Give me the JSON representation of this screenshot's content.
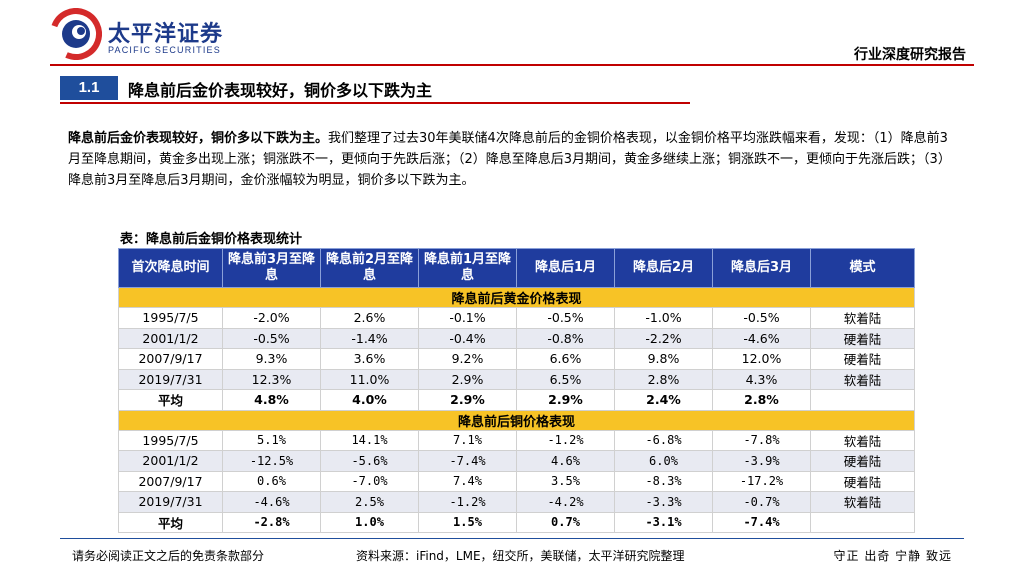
{
  "header": {
    "brand_cn": "太平洋证券",
    "brand_en": "PACIFIC SECURITIES",
    "report_type": "行业深度研究报告",
    "accent_red": "#c00000",
    "accent_blue": "#1f4e9c"
  },
  "section": {
    "number": "1.1",
    "title": "降息前后金价表现较好，铜价多以下跌为主"
  },
  "paragraph": {
    "lead": "降息前后金价表现较好，铜价多以下跌为主。",
    "body": "我们整理了过去30年美联储4次降息前后的金铜价格表现，以金铜价格平均涨跌幅来看，发现：（1）降息前3月至降息期间，黄金多出现上涨；铜涨跌不一，更倾向于先跌后涨；（2）降息至降息后3月期间，黄金多继续上涨；铜涨跌不一，更倾向于先涨后跌；（3）降息前3月至降息后3月期间，金价涨幅较为明显，铜价多以下跌为主。"
  },
  "table": {
    "title": "表：降息前后金铜价格表现统计",
    "header_color": "#1f3c9e",
    "band_color": "#f7c326",
    "columns": [
      "首次降息时间",
      "降息前3月至降息",
      "降息前2月至降息",
      "降息前1月至降息",
      "降息后1月",
      "降息后2月",
      "降息后3月",
      "模式"
    ],
    "gold_band": "降息前后黄金价格表现",
    "gold_rows": [
      [
        "1995/7/5",
        "-2.0%",
        "2.6%",
        "-0.1%",
        "-0.5%",
        "-1.0%",
        "-0.5%",
        "软着陆"
      ],
      [
        "2001/1/2",
        "-0.5%",
        "-1.4%",
        "-0.4%",
        "-0.8%",
        "-2.2%",
        "-4.6%",
        "硬着陆"
      ],
      [
        "2007/9/17",
        "9.3%",
        "3.6%",
        "9.2%",
        "6.6%",
        "9.8%",
        "12.0%",
        "硬着陆"
      ],
      [
        "2019/7/31",
        "12.3%",
        "11.0%",
        "2.9%",
        "6.5%",
        "2.8%",
        "4.3%",
        "软着陆"
      ]
    ],
    "gold_avg": [
      "平均",
      "4.8%",
      "4.0%",
      "2.9%",
      "2.9%",
      "2.4%",
      "2.8%",
      ""
    ],
    "copper_band": "降息前后铜价格表现",
    "copper_rows": [
      [
        "1995/7/5",
        "5.1%",
        "14.1%",
        "7.1%",
        "-1.2%",
        "-6.8%",
        "-7.8%",
        "软着陆"
      ],
      [
        "2001/1/2",
        "-12.5%",
        "-5.6%",
        "-7.4%",
        "4.6%",
        "6.0%",
        "-3.9%",
        "硬着陆"
      ],
      [
        "2007/9/17",
        "0.6%",
        "-7.0%",
        "7.4%",
        "3.5%",
        "-8.3%",
        "-17.2%",
        "硬着陆"
      ],
      [
        "2019/7/31",
        "-4.6%",
        "2.5%",
        "-1.2%",
        "-4.2%",
        "-3.3%",
        "-0.7%",
        "软着陆"
      ]
    ],
    "copper_avg": [
      "平均",
      "-2.8%",
      "1.0%",
      "1.5%",
      "0.7%",
      "-3.1%",
      "-7.4%",
      ""
    ]
  },
  "footer": {
    "disclaimer": "请务必阅读正文之后的免责条款部分",
    "source": "资料来源：iFind，LME，纽交所，美联储，太平洋研究院整理",
    "motto": "守正 出奇 宁静 致远"
  }
}
